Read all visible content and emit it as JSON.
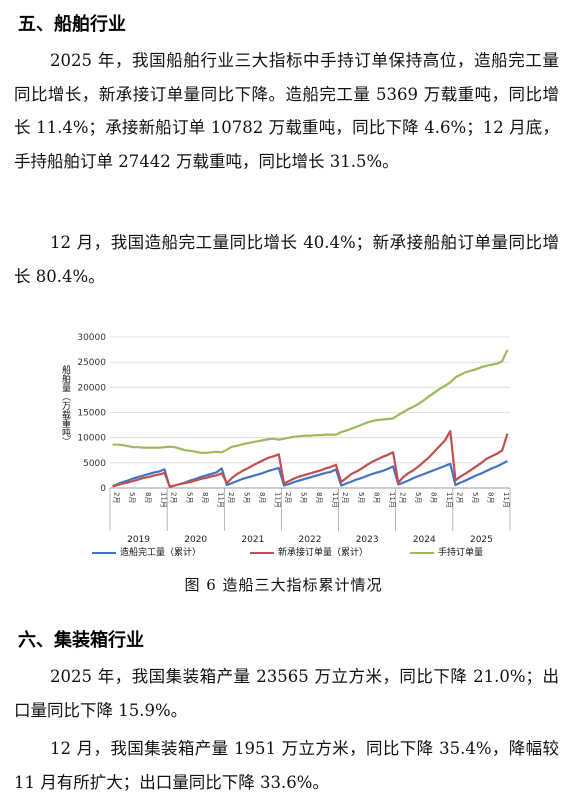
{
  "section5": {
    "title": "五、船舶行业",
    "para1": "2025 年，我国船舶行业三大指标中手持订单保持高位，造船完工量同比增长，新承接订单量同比下降。造船完工量 5369 万载重吨，同比增长 11.4%；承接新船订单 10782 万载重吨，同比下降 4.6%；12 月底，手持船舶订单 27442 万载重吨，同比增长 31.5%。",
    "para2": "12 月，我国造船完工量同比增长 40.4%；新承接船舶订单量同比增长 80.4%。"
  },
  "figure": {
    "caption": "图 6 造船三大指标累计情况",
    "ylabel": "船舶量（万载重吨）"
  },
  "chart_data": {
    "type": "line",
    "ylim": [
      0,
      30000
    ],
    "yticks": [
      "0",
      "5000",
      "10000",
      "15000",
      "20000",
      "25000",
      "30000"
    ],
    "years": [
      "2019",
      "2020",
      "2021",
      "2022",
      "2023",
      "2024",
      "2025"
    ],
    "month_ticks": [
      "2月",
      "5月",
      "8月",
      "11月"
    ],
    "series": [
      {
        "name": "造船完工量（累计）",
        "color": "#4472c4",
        "values": [
          [
            400,
            800,
            1200,
            1500,
            1900,
            2200,
            2500,
            2800,
            3100,
            3300,
            3700
          ],
          [
            200,
            500,
            800,
            1100,
            1500,
            1800,
            2200,
            2500,
            2800,
            3100,
            3900
          ],
          [
            600,
            1000,
            1400,
            1800,
            2100,
            2400,
            2700,
            3000,
            3400,
            3700,
            4000
          ],
          [
            500,
            800,
            1200,
            1500,
            1800,
            2100,
            2400,
            2700,
            3000,
            3200,
            3700
          ],
          [
            500,
            900,
            1300,
            1700,
            2000,
            2400,
            2800,
            3100,
            3400,
            3800,
            4300
          ],
          [
            700,
            1100,
            1500,
            2000,
            2400,
            2800,
            3200,
            3600,
            4000,
            4400,
            4800
          ],
          [
            600,
            1100,
            1500,
            2000,
            2500,
            2900,
            3400,
            3900,
            4300,
            4800,
            5369
          ]
        ]
      },
      {
        "name": "新承接订单量（累计）",
        "color": "#c0504d",
        "values": [
          [
            300,
            600,
            900,
            1100,
            1400,
            1700,
            2000,
            2200,
            2500,
            2700,
            3000
          ],
          [
            300,
            500,
            800,
            1000,
            1200,
            1500,
            1800,
            2000,
            2300,
            2500,
            2900
          ],
          [
            1000,
            2000,
            2800,
            3400,
            3900,
            4500,
            5000,
            5500,
            6000,
            6300,
            6700
          ],
          [
            900,
            1400,
            1900,
            2300,
            2600,
            2900,
            3200,
            3500,
            3900,
            4200,
            4600
          ],
          [
            1200,
            2000,
            2800,
            3300,
            3900,
            4600,
            5200,
            5700,
            6200,
            6600,
            7100
          ],
          [
            1100,
            2200,
            3000,
            3600,
            4400,
            5300,
            6200,
            7300,
            8400,
            9500,
            11300
          ],
          [
            1500,
            2300,
            2900,
            3600,
            4300,
            5000,
            5800,
            6300,
            6800,
            7500,
            10782
          ]
        ]
      },
      {
        "name": "手持订单量",
        "color": "#9bbb59",
        "values": [
          [
            8600,
            8600,
            8500,
            8300,
            8100,
            8100,
            8000,
            8000,
            8000,
            8000,
            8100
          ],
          [
            8200,
            8100,
            7800,
            7500,
            7400,
            7200,
            7000,
            7000,
            7100,
            7200,
            7100
          ],
          [
            7600,
            8200,
            8400,
            8700,
            8900,
            9100,
            9300,
            9500,
            9700,
            9800,
            9600
          ],
          [
            9800,
            10000,
            10200,
            10300,
            10400,
            10400,
            10500,
            10500,
            10600,
            10600,
            10600
          ],
          [
            11100,
            11400,
            11800,
            12200,
            12600,
            13000,
            13300,
            13500,
            13600,
            13700,
            13800
          ],
          [
            14500,
            15100,
            15700,
            16200,
            16800,
            17500,
            18300,
            19000,
            19700,
            20300,
            21000
          ],
          [
            22000,
            22500,
            23000,
            23300,
            23600,
            24000,
            24300,
            24500,
            24700,
            25200,
            27442
          ]
        ]
      }
    ],
    "grid": "horizontal",
    "legend": "bottom"
  },
  "section6": {
    "title": "六、集装箱行业",
    "para1": "2025 年，我国集装箱产量 23565 万立方米，同比下降 21.0%；出口量同比下降 15.9%。",
    "para2": "12 月，我国集装箱产量 1951 万立方米，同比下降 35.4%，降幅较 11 月有所扩大；出口量同比下降 33.6%。"
  }
}
